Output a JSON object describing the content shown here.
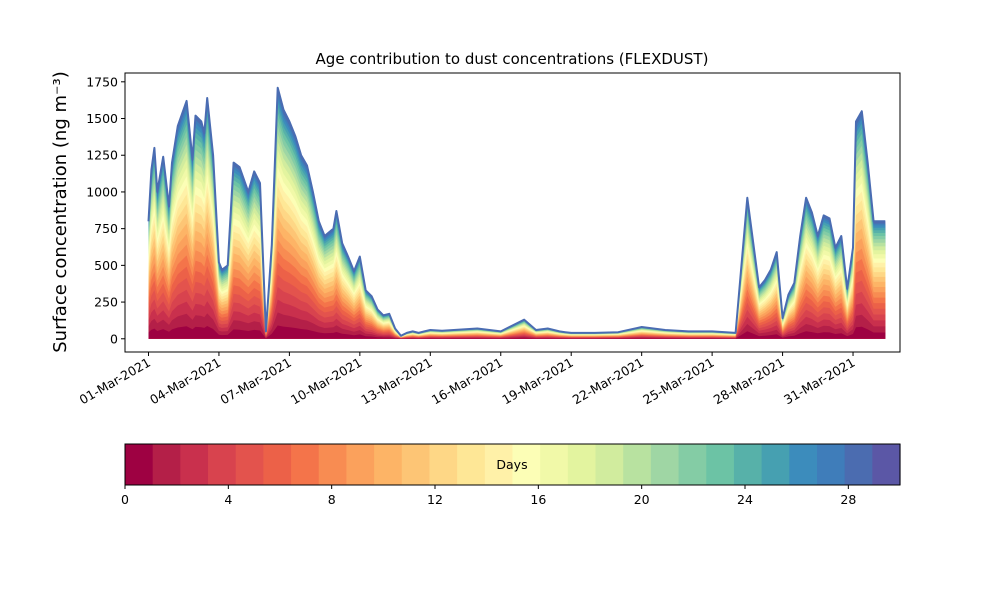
{
  "chart_data": {
    "type": "area",
    "title": "Age contribution to dust concentrations (FLEXDUST)",
    "ylabel": "Surface concentration (ng m⁻³)",
    "xlabel": "",
    "ylim": [
      -90,
      1810
    ],
    "yticks": [
      0,
      250,
      500,
      750,
      1000,
      1250,
      1500,
      1750
    ],
    "x_range": [
      "2021-02-28T00:00",
      "2021-04-02T00:00"
    ],
    "xticks": [
      {
        "date": "2021-03-01",
        "label": "01-Mar-2021"
      },
      {
        "date": "2021-03-04",
        "label": "04-Mar-2021"
      },
      {
        "date": "2021-03-07",
        "label": "07-Mar-2021"
      },
      {
        "date": "2021-03-10",
        "label": "10-Mar-2021"
      },
      {
        "date": "2021-03-13",
        "label": "13-Mar-2021"
      },
      {
        "date": "2021-03-16",
        "label": "16-Mar-2021"
      },
      {
        "date": "2021-03-19",
        "label": "19-Mar-2021"
      },
      {
        "date": "2021-03-22",
        "label": "22-Mar-2021"
      },
      {
        "date": "2021-03-25",
        "label": "25-Mar-2021"
      },
      {
        "date": "2021-03-28",
        "label": "28-Mar-2021"
      },
      {
        "date": "2021-03-31",
        "label": "31-Mar-2021"
      }
    ],
    "grid": false,
    "total": {
      "x": [
        "2021-03-01T00:00",
        "2021-03-01T03:00",
        "2021-03-01T06:00",
        "2021-03-01T09:00",
        "2021-03-01T15:00",
        "2021-03-01T21:00",
        "2021-03-02T00:00",
        "2021-03-02T06:00",
        "2021-03-02T15:00",
        "2021-03-02T21:00",
        "2021-03-03T00:00",
        "2021-03-03T06:00",
        "2021-03-03T09:00",
        "2021-03-03T12:00",
        "2021-03-03T18:00",
        "2021-03-04T00:00",
        "2021-03-04T03:00",
        "2021-03-04T09:00",
        "2021-03-04T15:00",
        "2021-03-04T21:00",
        "2021-03-05T06:00",
        "2021-03-05T12:00",
        "2021-03-05T18:00",
        "2021-03-06T00:00",
        "2021-03-06T06:00",
        "2021-03-06T12:00",
        "2021-03-06T18:00",
        "2021-03-07T00:00",
        "2021-03-07T06:00",
        "2021-03-07T12:00",
        "2021-03-07T18:00",
        "2021-03-08T00:00",
        "2021-03-08T06:00",
        "2021-03-08T12:00",
        "2021-03-08T21:00",
        "2021-03-09T00:00",
        "2021-03-09T06:00",
        "2021-03-09T12:00",
        "2021-03-09T18:00",
        "2021-03-10T00:00",
        "2021-03-10T06:00",
        "2021-03-10T12:00",
        "2021-03-10T18:00",
        "2021-03-11T00:00",
        "2021-03-11T06:00",
        "2021-03-11T12:00",
        "2021-03-11T18:00",
        "2021-03-12T00:00",
        "2021-03-12T06:00",
        "2021-03-12T12:00",
        "2021-03-12T18:00",
        "2021-03-13T00:00",
        "2021-03-13T12:00",
        "2021-03-14T00:00",
        "2021-03-15T00:00",
        "2021-03-16T00:00",
        "2021-03-17T00:00",
        "2021-03-17T12:00",
        "2021-03-18T00:00",
        "2021-03-18T12:00",
        "2021-03-18T18:00",
        "2021-03-19T00:00",
        "2021-03-19T12:00",
        "2021-03-20T00:00",
        "2021-03-21T00:00",
        "2021-03-22T00:00",
        "2021-03-23T00:00",
        "2021-03-24T00:00",
        "2021-03-25T00:00",
        "2021-03-26T00:00",
        "2021-03-26T12:00",
        "2021-03-27T00:00",
        "2021-03-27T06:00",
        "2021-03-27T12:00",
        "2021-03-27T18:00",
        "2021-03-28T00:00",
        "2021-03-28T06:00",
        "2021-03-28T12:00",
        "2021-03-28T18:00",
        "2021-03-29T00:00",
        "2021-03-29T06:00",
        "2021-03-29T12:00",
        "2021-03-29T18:00",
        "2021-03-30T00:00",
        "2021-03-30T06:00",
        "2021-03-30T12:00",
        "2021-03-30T18:00",
        "2021-03-31T00:00",
        "2021-03-31T03:00",
        "2021-03-31T09:00",
        "2021-03-31T15:00",
        "2021-03-31T21:00",
        "2021-04-01T00:00",
        "2021-04-01T06:00",
        "2021-04-01T09:00"
      ],
      "y": [
        800,
        1150,
        1300,
        1000,
        1240,
        900,
        1200,
        1450,
        1620,
        1220,
        1520,
        1480,
        1400,
        1640,
        1250,
        520,
        470,
        500,
        1200,
        1170,
        1000,
        1140,
        1060,
        50,
        640,
        1710,
        1560,
        1480,
        1380,
        1250,
        1180,
        1000,
        800,
        700,
        750,
        870,
        650,
        560,
        460,
        560,
        330,
        290,
        200,
        160,
        170,
        70,
        20,
        40,
        50,
        40,
        50,
        60,
        55,
        60,
        70,
        50,
        130,
        60,
        70,
        50,
        45,
        40,
        40,
        40,
        45,
        80,
        60,
        50,
        50,
        40,
        960,
        350,
        400,
        470,
        590,
        140,
        300,
        380,
        700,
        960,
        860,
        700,
        840,
        820,
        620,
        700,
        340,
        620,
        1480,
        1550,
        1200,
        800,
        800,
        800,
        800
      ]
    },
    "age_classes": {
      "label": "Days",
      "min": 0,
      "max": 30,
      "ticks": [
        0,
        4,
        8,
        12,
        16,
        20,
        24,
        28
      ],
      "colors": [
        "#9e0142",
        "#b41f48",
        "#c9304d",
        "#d8434e",
        "#e3534d",
        "#ec6148",
        "#f4744a",
        "#f88c52",
        "#fba15c",
        "#fdb466",
        "#fdc575",
        "#fed786",
        "#fee796",
        "#fff1a8",
        "#fcfeb6",
        "#f1f9a8",
        "#e3f49f",
        "#d1ec9e",
        "#b8e2a0",
        "#9fd6a4",
        "#84cca5",
        "#6cc3a5",
        "#57b1a9",
        "#46a0b1",
        "#3c8cbc",
        "#3f7dba",
        "#4b6cb0",
        "#5b57a6"
      ]
    }
  }
}
